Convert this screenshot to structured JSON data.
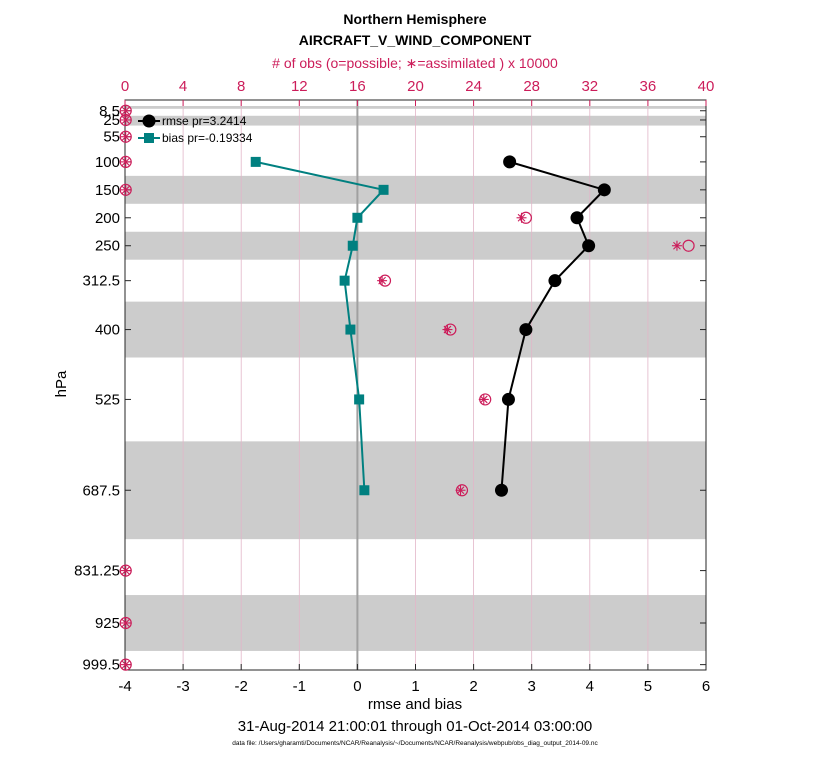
{
  "chart_data": {
    "type": "line",
    "title": "Northern Hemisphere",
    "subtitle": "AIRCRAFT_V_WIND_COMPONENT",
    "top_axis_label": "# of obs (o=possible; ∗=assimilated ) x 10000",
    "xlabel": "rmse and bias",
    "ylabel": "hPa",
    "date_range": "31-Aug-2014 21:00:01 through 01-Oct-2014 03:00:00",
    "data_file": "data file: /Users/gharamti/Documents/NCAR/Reanalysis/~/Documents/NCAR/Reanalysis/webpub/obs_diag_output_2014-09.nc",
    "xlim": [
      -4,
      6
    ],
    "x_ticks": [
      "-4",
      "-3",
      "-2",
      "-1",
      "0",
      "1",
      "2",
      "3",
      "4",
      "5",
      "6"
    ],
    "top_xlim": [
      0,
      40
    ],
    "top_ticks": [
      "0",
      "4",
      "8",
      "12",
      "16",
      "20",
      "24",
      "28",
      "32",
      "36",
      "40"
    ],
    "y_ticks": [
      "8.5",
      "25",
      "55",
      "100",
      "150",
      "200",
      "250",
      "312.5",
      "400",
      "525",
      "687.5",
      "831.25",
      "925",
      "999.5"
    ],
    "levels": [
      8.5,
      25,
      55,
      100,
      150,
      200,
      250,
      312.5,
      400,
      525,
      687.5,
      831.25,
      925,
      999.5
    ],
    "series": [
      {
        "name": "rmse",
        "legend": "rmse pr=3.2414",
        "color": "#000000",
        "marker": "circle",
        "points": [
          [
            2.62,
            100
          ],
          [
            4.25,
            150
          ],
          [
            3.78,
            200
          ],
          [
            3.98,
            250
          ],
          [
            3.4,
            312.5
          ],
          [
            2.9,
            400
          ],
          [
            2.6,
            525
          ],
          [
            2.48,
            687.5
          ]
        ]
      },
      {
        "name": "bias",
        "legend": "bias pr=-0.19334",
        "color": "#008080",
        "marker": "square",
        "points": [
          [
            -1.75,
            100
          ],
          [
            0.45,
            150
          ],
          [
            0.0,
            200
          ],
          [
            -0.08,
            250
          ],
          [
            -0.22,
            312.5
          ],
          [
            -0.12,
            400
          ],
          [
            0.03,
            525
          ],
          [
            0.12,
            687.5
          ]
        ]
      }
    ],
    "obs_possible": [
      [
        0.05,
        8.5
      ],
      [
        0.05,
        25
      ],
      [
        0.05,
        55
      ],
      [
        0.05,
        100
      ],
      [
        0.05,
        150
      ],
      [
        27.6,
        200
      ],
      [
        38.8,
        250
      ],
      [
        17.9,
        312.5
      ],
      [
        22.4,
        400
      ],
      [
        24.8,
        525
      ],
      [
        23.2,
        687.5
      ],
      [
        0.05,
        831.25
      ],
      [
        0.05,
        925
      ],
      [
        0.05,
        999.5
      ]
    ],
    "obs_assimilated": [
      [
        0.05,
        8.5
      ],
      [
        0.05,
        25
      ],
      [
        0.05,
        55
      ],
      [
        0.05,
        100
      ],
      [
        0.05,
        150
      ],
      [
        27.3,
        200
      ],
      [
        38.0,
        250
      ],
      [
        17.7,
        312.5
      ],
      [
        22.2,
        400
      ],
      [
        24.7,
        525
      ],
      [
        23.1,
        687.5
      ],
      [
        0.05,
        831.25
      ],
      [
        0.05,
        925
      ],
      [
        0.05,
        999.5
      ]
    ],
    "shaded_bands": [
      [
        0,
        5
      ],
      [
        17.5,
        35
      ],
      [
        125,
        175
      ],
      [
        225,
        275
      ],
      [
        350,
        450
      ],
      [
        600,
        775
      ],
      [
        875,
        975
      ]
    ],
    "colors": {
      "obs": "#cc1d5a",
      "bias": "#008080",
      "rmse": "#000000",
      "band": "#cccccc",
      "zero_line": "#a0a0a0"
    }
  }
}
